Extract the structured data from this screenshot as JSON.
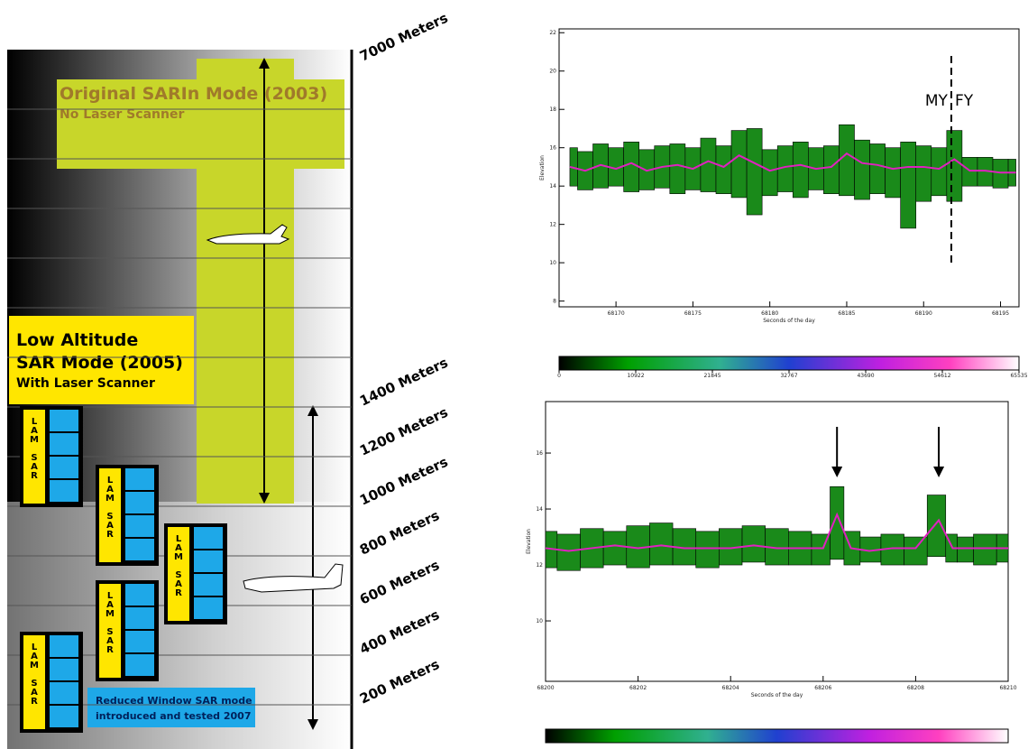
{
  "diagram": {
    "altitudes": [
      "7000 Meters",
      "1400 Meters",
      "1200 Meters",
      "1000 Meters",
      "800 Meters",
      "600 Meters",
      "400 Meters",
      "200 Meters"
    ],
    "original_mode": {
      "title": "Original SARIn Mode (2003)",
      "subtitle": "No Laser Scanner"
    },
    "low_altitude_mode": {
      "lines": [
        "Low Altitude",
        "SAR Mode (2005)"
      ],
      "subtitle": "With Laser Scanner"
    },
    "lam_sar_boxes": [
      "LAM SAR",
      "LAM SAR",
      "LAM SAR",
      "LAM SAR",
      "LAM SAR"
    ],
    "reduced_window_note": [
      "Reduced Window SAR mode",
      "introduced and tested 2007"
    ]
  },
  "chart_data": [
    {
      "type": "band",
      "xlabel": "Seconds of the day",
      "ylabel": "Elevation",
      "xlim": [
        68166.3,
        68196.2
      ],
      "ylim": [
        7.7,
        22.2
      ],
      "xticks": [
        68170,
        68175,
        68180,
        68185,
        68190,
        68195
      ],
      "yticks": [
        8,
        10,
        12,
        14,
        16,
        18,
        20,
        22
      ],
      "x": [
        68167,
        68168,
        68169,
        68170,
        68171,
        68172,
        68173,
        68174,
        68175,
        68176,
        68177,
        68178,
        68179,
        68180,
        68181,
        68182,
        68183,
        68184,
        68185,
        68186,
        68187,
        68188,
        68189,
        68190,
        68191,
        68192,
        68193,
        68194,
        68195,
        68196
      ],
      "series": [
        {
          "color": "#1a8a1a",
          "values": [
            16.0,
            15.8,
            16.2,
            16.0,
            16.3,
            15.9,
            16.1,
            16.2,
            16.0,
            16.5,
            16.1,
            16.9,
            17.0,
            15.9,
            16.1,
            16.3,
            16.0,
            16.1,
            17.2,
            16.4,
            16.2,
            16.0,
            16.3,
            16.1,
            16.0,
            16.9,
            15.5,
            15.5,
            15.4,
            15.4
          ]
        },
        {
          "color": "#1a8a1a",
          "values": [
            14.0,
            13.8,
            13.9,
            14.0,
            13.7,
            13.8,
            13.9,
            13.6,
            13.8,
            13.7,
            13.6,
            13.4,
            12.5,
            13.5,
            13.7,
            13.4,
            13.8,
            13.6,
            13.5,
            13.3,
            13.6,
            13.4,
            11.8,
            13.2,
            13.5,
            13.2,
            14.0,
            14.0,
            13.9,
            14.0
          ]
        },
        {
          "color": "#e020c0",
          "values": [
            15.0,
            14.8,
            15.1,
            14.9,
            15.2,
            14.8,
            15.0,
            15.1,
            14.9,
            15.3,
            15.0,
            15.6,
            15.2,
            14.8,
            15.0,
            15.1,
            14.9,
            15.0,
            15.7,
            15.2,
            15.1,
            14.9,
            15.0,
            15.0,
            14.9,
            15.4,
            14.8,
            14.8,
            14.7,
            14.7
          ]
        }
      ],
      "annotations": [
        "MY",
        "FY"
      ],
      "divider_x": 68191.8,
      "colorbar_ticks": [
        0,
        10922,
        21845,
        32767,
        43690,
        54612,
        65535
      ]
    },
    {
      "type": "band",
      "xlabel": "Seconds of the day",
      "ylabel": "Elevation",
      "xlim": [
        68200,
        68210
      ],
      "ylim": [
        7.84,
        17.84
      ],
      "xticks": [
        68200,
        68202,
        68204,
        68206,
        68208,
        68210
      ],
      "yticks": [
        10,
        12,
        14,
        16
      ],
      "x": [
        68200,
        68200.5,
        68201,
        68201.5,
        68202,
        68202.5,
        68203,
        68203.5,
        68204,
        68204.5,
        68205,
        68205.5,
        68206,
        68206.3,
        68206.6,
        68207,
        68207.5,
        68208,
        68208.5,
        68208.8,
        68209,
        68209.5,
        68210
      ],
      "series": [
        {
          "color": "#1a8a1a",
          "values": [
            13.2,
            13.1,
            13.3,
            13.2,
            13.4,
            13.5,
            13.3,
            13.2,
            13.3,
            13.4,
            13.3,
            13.2,
            13.1,
            14.8,
            13.2,
            13.0,
            13.1,
            13.0,
            14.5,
            13.1,
            13.0,
            13.1,
            13.1
          ]
        },
        {
          "color": "#1a8a1a",
          "values": [
            11.9,
            11.8,
            11.9,
            12.0,
            11.9,
            12.0,
            12.0,
            11.9,
            12.0,
            12.1,
            12.0,
            12.0,
            12.0,
            12.2,
            12.0,
            12.1,
            12.0,
            12.0,
            12.3,
            12.1,
            12.1,
            12.0,
            12.1
          ]
        },
        {
          "color": "#e020c0",
          "values": [
            12.6,
            12.5,
            12.6,
            12.7,
            12.6,
            12.7,
            12.6,
            12.6,
            12.6,
            12.7,
            12.6,
            12.6,
            12.6,
            13.8,
            12.6,
            12.5,
            12.6,
            12.6,
            13.6,
            12.6,
            12.6,
            12.6,
            12.6
          ]
        }
      ],
      "arrows_x": [
        68206.3,
        68208.5
      ]
    }
  ]
}
